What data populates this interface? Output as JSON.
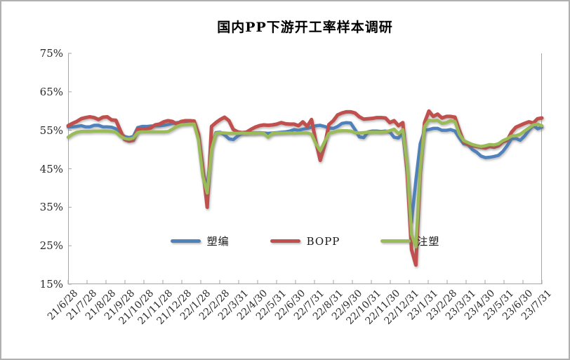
{
  "frame": {
    "background": "#ffffff",
    "border_color": "#b0b0b0"
  },
  "axis": {
    "color": "#a6a6a6",
    "y_tick_labels": [
      "75%",
      "65%",
      "55%",
      "45%",
      "35%",
      "25%",
      "15%"
    ],
    "tick_style": "inward"
  },
  "chart_data": {
    "type": "line",
    "title": "国内PP下游开工率样本调研",
    "xlabel": "",
    "ylabel": "",
    "ylim": [
      15,
      75
    ],
    "y_tick_step": 10,
    "grid": false,
    "legend_position": "inside-lower-center",
    "x_tick_labels": [
      "21/6/28",
      "21/7/28",
      "21/8/28",
      "21/9/28",
      "21/10/28",
      "21/11/28",
      "21/12/28",
      "22/1/28",
      "22/2/28",
      "22/3/31",
      "22/4/30",
      "22/5/31",
      "22/6/30",
      "22/7/31",
      "22/8/31",
      "22/9/30",
      "22/10/31",
      "22/11/30",
      "22/12/31",
      "23/1/31",
      "23/2/28",
      "23/3/31",
      "23/4/30",
      "23/5/31",
      "23/6/30",
      "23/7/31"
    ],
    "unit": "percent",
    "series": [
      {
        "name": "塑编",
        "color": "#4F81BD",
        "values": [
          55.9,
          55.9,
          56.0,
          56.2,
          55.9,
          55.9,
          56.3,
          56.3,
          55.9,
          55.9,
          55.8,
          55.4,
          54.2,
          53.4,
          53.1,
          53.4,
          55.7,
          56.0,
          56.0,
          56.1,
          56.2,
          56.2,
          56.3,
          56.5,
          56.8,
          57.0,
          57.1,
          57.2,
          57.2,
          57.2,
          53.5,
          44.0,
          40.0,
          51.0,
          54.4,
          54.5,
          53.8,
          52.8,
          52.6,
          53.5,
          54.3,
          54.3,
          54.3,
          54.3,
          54.4,
          54.3,
          54.2,
          54.3,
          54.4,
          54.5,
          54.6,
          54.8,
          55.2,
          55.0,
          55.3,
          55.5,
          55.8,
          56.2,
          56.3,
          56.0,
          55.6,
          55.5,
          56.0,
          56.8,
          57.0,
          56.9,
          55.2,
          53.3,
          53.1,
          54.6,
          54.8,
          54.8,
          54.7,
          54.8,
          54.6,
          53.2,
          53.0,
          54.4,
          44.0,
          31.2,
          42.0,
          51.5,
          55.0,
          55.2,
          55.5,
          55.5,
          55.0,
          55.0,
          55.2,
          54.8,
          53.0,
          51.5,
          51.3,
          50.0,
          49.3,
          48.3,
          47.9,
          48.0,
          48.2,
          48.5,
          49.5,
          51.0,
          52.8,
          52.9,
          52.4,
          53.5,
          55.0,
          56.3,
          55.4,
          55.8
        ]
      },
      {
        "name": "BOPP",
        "color": "#C0504D",
        "values": [
          56.2,
          56.8,
          57.3,
          58.0,
          58.3,
          58.5,
          58.3,
          57.8,
          58.4,
          58.5,
          57.7,
          57.6,
          55.0,
          52.6,
          52.2,
          52.4,
          55.3,
          55.4,
          55.4,
          55.6,
          56.4,
          56.6,
          57.2,
          57.5,
          57.3,
          56.6,
          57.3,
          57.5,
          57.5,
          57.4,
          54.0,
          45.0,
          35.0,
          56.0,
          57.0,
          57.8,
          58.4,
          57.5,
          55.2,
          54.6,
          54.4,
          54.5,
          55.2,
          55.8,
          56.2,
          56.4,
          56.3,
          56.4,
          56.6,
          57.0,
          56.7,
          56.6,
          56.6,
          56.2,
          57.2,
          56.0,
          57.8,
          52.0,
          47.2,
          51.0,
          56.5,
          57.5,
          59.0,
          59.5,
          59.8,
          59.8,
          59.5,
          58.5,
          57.9,
          58.0,
          58.1,
          58.3,
          58.3,
          58.2,
          57.0,
          57.5,
          56.2,
          57.0,
          44.0,
          24.0,
          20.0,
          44.0,
          57.0,
          60.0,
          58.6,
          59.2,
          58.2,
          58.6,
          58.6,
          58.4,
          55.0,
          52.0,
          51.3,
          51.0,
          50.8,
          50.6,
          50.4,
          50.8,
          50.6,
          51.0,
          52.0,
          52.4,
          54.5,
          55.8,
          56.3,
          56.8,
          57.2,
          56.9,
          58.0,
          58.2
        ]
      },
      {
        "name": "注塑",
        "color": "#9BBB59",
        "values": [
          53.2,
          54.0,
          54.5,
          54.7,
          54.7,
          54.7,
          54.8,
          54.8,
          54.8,
          54.8,
          54.7,
          54.5,
          53.5,
          52.9,
          52.7,
          53.0,
          54.4,
          54.6,
          54.6,
          54.6,
          54.6,
          54.6,
          54.6,
          54.7,
          55.3,
          56.0,
          56.4,
          56.5,
          56.6,
          56.6,
          52.5,
          43.0,
          38.7,
          50.0,
          54.2,
          54.4,
          54.3,
          54.2,
          54.2,
          54.2,
          54.3,
          54.2,
          54.2,
          54.2,
          54.3,
          54.2,
          53.2,
          54.2,
          54.3,
          54.3,
          54.3,
          54.3,
          54.2,
          54.3,
          54.3,
          54.3,
          54.0,
          51.5,
          49.7,
          52.0,
          54.2,
          54.5,
          54.8,
          54.9,
          54.9,
          54.8,
          54.4,
          54.3,
          54.4,
          54.5,
          54.5,
          54.5,
          54.5,
          54.6,
          54.9,
          55.3,
          54.1,
          55.2,
          46.0,
          28.0,
          24.7,
          45.0,
          56.0,
          57.6,
          57.5,
          57.6,
          56.8,
          57.0,
          57.5,
          57.3,
          54.0,
          52.3,
          51.8,
          51.3,
          51.0,
          50.8,
          51.0,
          51.3,
          51.2,
          51.5,
          52.3,
          52.8,
          53.5,
          53.6,
          54.0,
          54.8,
          55.6,
          56.4,
          56.6,
          56.2
        ]
      }
    ]
  }
}
